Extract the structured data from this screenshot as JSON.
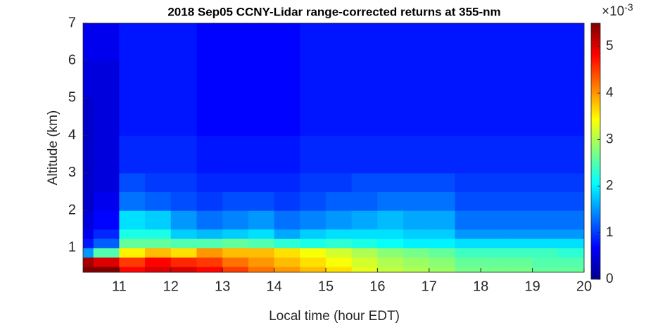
{
  "chart_data": {
    "type": "heatmap",
    "title": "2018 Sep05 CCNY-Lidar range-corrected returns at 355-nm",
    "x_label": "Local time (hour EDT)",
    "y_label": "Altitude (km)",
    "x_edges": [
      10.3,
      10.5,
      11,
      11.5,
      12,
      12.5,
      13,
      13.5,
      14,
      14.5,
      15,
      15.5,
      16,
      16.5,
      17,
      17.5,
      18,
      18.5,
      19,
      19.5,
      20
    ],
    "y_edges": [
      0.35,
      0.5,
      0.75,
      1,
      1.25,
      1.5,
      2,
      2.5,
      3,
      4,
      5,
      6,
      7
    ],
    "z": [
      [
        5.5,
        5.5,
        4.8,
        5,
        5,
        4.8,
        4.5,
        4.2,
        4,
        3.8,
        3.6,
        3.3,
        3.1,
        3,
        2.9,
        2.7,
        2.7,
        2.7,
        2.6,
        2.6
      ],
      [
        5.3,
        5.0,
        4.5,
        4.8,
        4.6,
        4.5,
        4.2,
        4,
        3.8,
        3.6,
        3.4,
        3.2,
        3,
        2.9,
        2.8,
        2.6,
        2.6,
        2.6,
        2.5,
        2.5
      ],
      [
        1.5,
        2.5,
        3.5,
        3.8,
        3.6,
        4,
        3.8,
        3.8,
        3.6,
        3.4,
        3.2,
        3,
        2.8,
        2.7,
        2.6,
        2.4,
        2.4,
        2.4,
        2.4,
        2.3
      ],
      [
        0.8,
        1.2,
        2.6,
        2.6,
        2.5,
        2.5,
        2.6,
        2.5,
        2.3,
        2.2,
        2.3,
        2.2,
        2.1,
        2,
        2,
        1.9,
        1.9,
        1.9,
        1.9,
        1.9
      ],
      [
        0.6,
        0.9,
        2.2,
        2.2,
        1.8,
        1.7,
        1.8,
        1.9,
        1.6,
        1.8,
        1.9,
        1.9,
        1.9,
        1.8,
        1.8,
        1.5,
        1.5,
        1.5,
        1.5,
        1.5
      ],
      [
        0.5,
        0.7,
        1.9,
        1.8,
        1.5,
        1.3,
        1.4,
        1.5,
        1.3,
        1.4,
        1.5,
        1.6,
        1.7,
        1.6,
        1.6,
        1.3,
        1.3,
        1.3,
        1.3,
        1.3
      ],
      [
        0.4,
        0.6,
        1.3,
        1.2,
        1.1,
        1.0,
        1.1,
        1.1,
        1.0,
        1.1,
        1.2,
        1.2,
        1.3,
        1.3,
        1.3,
        1.1,
        1.1,
        1.1,
        1.1,
        1.1
      ],
      [
        0.4,
        0.5,
        1.1,
        1.0,
        1.0,
        0.9,
        0.9,
        0.9,
        0.9,
        1.0,
        1.0,
        1.1,
        1.1,
        1.1,
        1.1,
        1.0,
        1.0,
        1.0,
        1.0,
        1.0
      ],
      [
        0.4,
        0.5,
        0.9,
        0.9,
        0.9,
        0.8,
        0.8,
        0.8,
        0.8,
        0.9,
        0.9,
        0.9,
        0.9,
        0.9,
        0.9,
        0.9,
        0.9,
        0.9,
        0.9,
        0.9
      ],
      [
        0.4,
        0.5,
        0.8,
        0.8,
        0.8,
        0.7,
        0.7,
        0.7,
        0.7,
        0.8,
        0.8,
        0.8,
        0.8,
        0.8,
        0.8,
        0.8,
        0.8,
        0.8,
        0.8,
        0.8
      ],
      [
        0.5,
        0.5,
        0.8,
        0.8,
        0.8,
        0.7,
        0.7,
        0.7,
        0.7,
        0.8,
        0.8,
        0.8,
        0.8,
        0.8,
        0.8,
        0.8,
        0.8,
        0.8,
        0.8,
        0.8
      ],
      [
        0.6,
        0.6,
        0.8,
        0.8,
        0.8,
        0.7,
        0.7,
        0.7,
        0.7,
        0.8,
        0.8,
        0.8,
        0.8,
        0.8,
        0.8,
        0.8,
        0.8,
        0.8,
        0.8,
        0.8
      ]
    ],
    "colormap": "jet",
    "xlim": [
      10.3,
      20
    ],
    "xticks": [
      11,
      12,
      13,
      14,
      15,
      16,
      17,
      18,
      19,
      20
    ],
    "ylim": [
      0.35,
      7
    ],
    "yticks": [
      1,
      2,
      3,
      4,
      5,
      6,
      7
    ],
    "clim": [
      0,
      5.5
    ],
    "cticks": [
      0,
      1,
      2,
      3,
      4,
      5
    ],
    "colorbar_multiplier": "×10",
    "colorbar_exponent": "-3"
  }
}
